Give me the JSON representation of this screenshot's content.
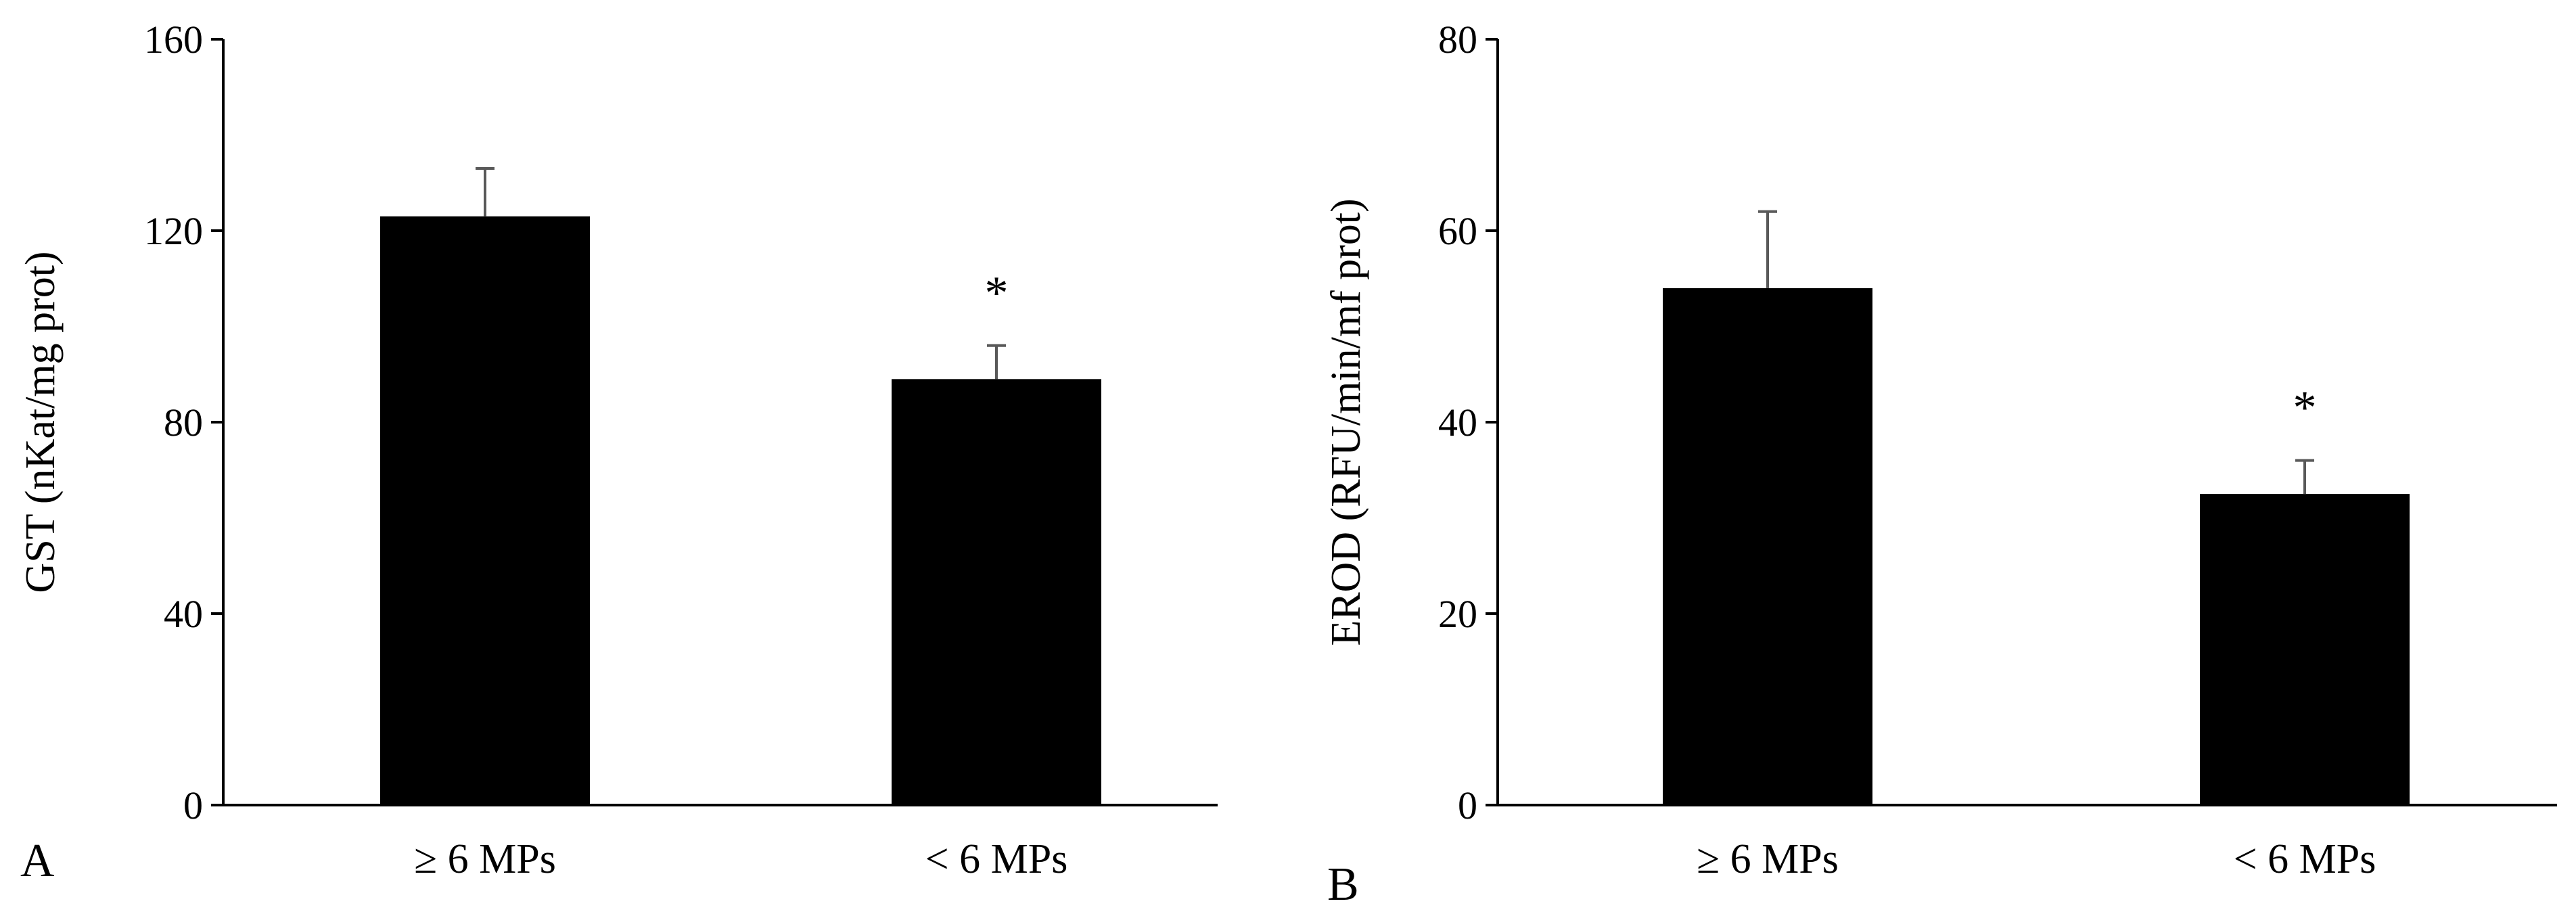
{
  "chart_data": [
    {
      "type": "bar",
      "panel_label": "A",
      "categories": [
        "≥ 6 MPs",
        "< 6 MPs"
      ],
      "values": [
        123,
        89
      ],
      "error_upper": [
        133,
        96
      ],
      "significance": [
        "",
        "*"
      ],
      "xlabel": "",
      "ylabel": "GST (nKat/mg prot)",
      "ylim": [
        0,
        160
      ],
      "yticks": [
        0,
        40,
        80,
        120,
        160
      ],
      "grid": false,
      "bar_color": "#000000",
      "error_bar_color": "#595959"
    },
    {
      "type": "bar",
      "panel_label": "B",
      "categories": [
        "≥ 6 MPs",
        "< 6 MPs"
      ],
      "values": [
        54,
        32.5
      ],
      "error_upper": [
        62,
        36
      ],
      "significance": [
        "",
        "*"
      ],
      "xlabel": "",
      "ylabel": "EROD (RFU/min/mf prot)",
      "ylim": [
        0,
        80
      ],
      "yticks": [
        0,
        20,
        40,
        60,
        80
      ],
      "grid": false,
      "bar_color": "#000000",
      "error_bar_color": "#595959"
    }
  ]
}
